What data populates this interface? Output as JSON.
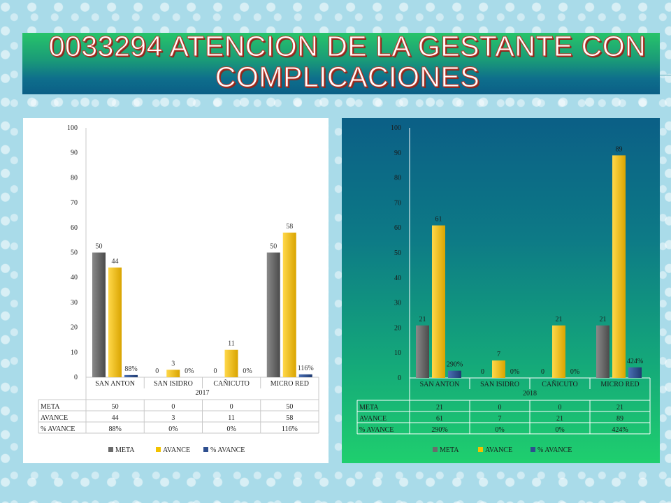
{
  "title": "0033294 ATENCION DE LA GESTANTE CON COMPLICACIONES",
  "colors": {
    "meta": "#6b6b6b",
    "avance": "#f2c200",
    "pct": "#2e4f8f"
  },
  "chart_data": [
    {
      "type": "bar",
      "title": "",
      "group_label": "2017",
      "categories": [
        "SAN ANTON",
        "SAN ISIDRO",
        "CAÑICUTO",
        "MICRO RED"
      ],
      "ylim": [
        0,
        100
      ],
      "yticks": [
        0,
        10,
        20,
        30,
        40,
        50,
        60,
        70,
        80,
        90,
        100
      ],
      "grid": false,
      "legend": "bottom",
      "series": [
        {
          "name": "META",
          "values": [
            50,
            0,
            0,
            50
          ],
          "labels": [
            "50",
            "0",
            "0",
            "50"
          ]
        },
        {
          "name": "AVANCE",
          "values": [
            44,
            3,
            11,
            58
          ],
          "labels": [
            "44",
            "3",
            "11",
            "58"
          ]
        },
        {
          "name": "% AVANCE",
          "values": [
            0.88,
            0,
            0,
            1.16
          ],
          "labels": [
            "88%",
            "0%",
            "0%",
            "116%"
          ]
        }
      ],
      "table": [
        {
          "name": "META",
          "cells": [
            "50",
            "0",
            "0",
            "50"
          ]
        },
        {
          "name": "AVANCE",
          "cells": [
            "44",
            "3",
            "11",
            "58"
          ]
        },
        {
          "name": "% AVANCE",
          "cells": [
            "88%",
            "0%",
            "0%",
            "116%"
          ]
        }
      ]
    },
    {
      "type": "bar",
      "title": "",
      "group_label": "2018",
      "categories": [
        "SAN ANTON",
        "SAN ISIDRO",
        "CAÑICUTO",
        "MICRO RED"
      ],
      "ylim": [
        0,
        100
      ],
      "yticks": [
        0,
        10,
        20,
        30,
        40,
        50,
        60,
        70,
        80,
        90,
        100
      ],
      "grid": false,
      "legend": "bottom",
      "series": [
        {
          "name": "META",
          "values": [
            21,
            0,
            0,
            21
          ],
          "labels": [
            "21",
            "0",
            "0",
            "21"
          ]
        },
        {
          "name": "AVANCE",
          "values": [
            61,
            7,
            21,
            89
          ],
          "labels": [
            "61",
            "7",
            "21",
            "89"
          ]
        },
        {
          "name": "% AVANCE",
          "values": [
            2.9,
            0,
            0,
            4.24
          ],
          "labels": [
            "290%",
            "0%",
            "0%",
            "424%"
          ]
        }
      ],
      "table": [
        {
          "name": "META",
          "cells": [
            "21",
            "0",
            "0",
            "21"
          ]
        },
        {
          "name": "AVANCE",
          "cells": [
            "61",
            "7",
            "21",
            "89"
          ]
        },
        {
          "name": "% AVANCE",
          "cells": [
            "290%",
            "0%",
            "0%",
            "424%"
          ]
        }
      ]
    }
  ]
}
